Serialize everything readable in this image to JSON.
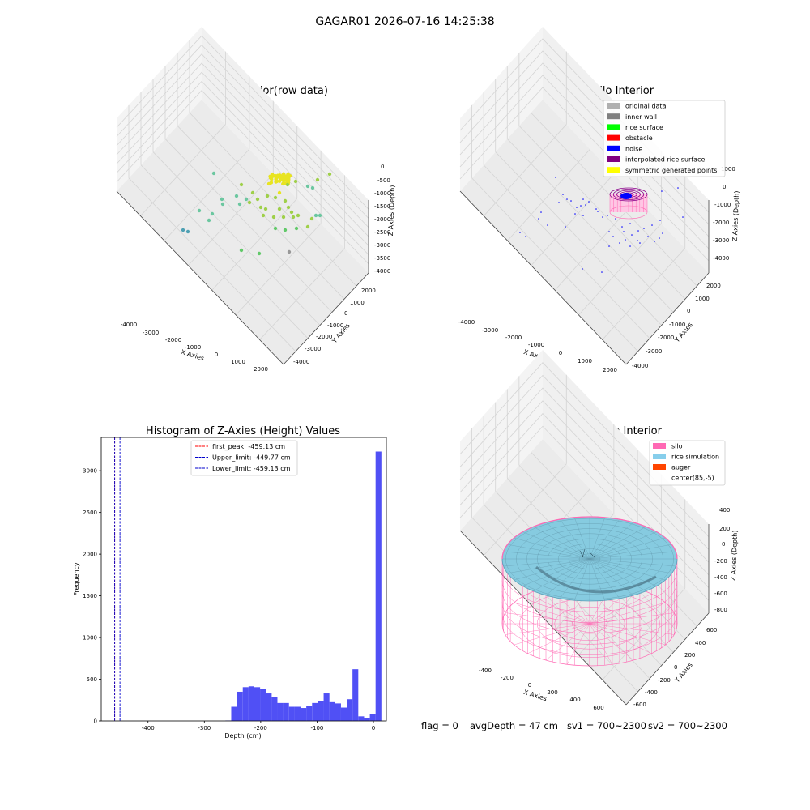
{
  "suptitle": "GAGAR01 2026-07-16 14:25:38",
  "panels": {
    "raw": {
      "title": "3D Plot of Silo Interior(row data)",
      "xlabel": "X Axies",
      "ylabel": "Y Axies",
      "zlabel": "Z Axies (Depth)",
      "xticks": [
        "-4000",
        "-3000",
        "-2000",
        "-1000",
        "0",
        "1000",
        "2000"
      ],
      "yticks": [
        "2000",
        "1000",
        "0",
        "-1000",
        "-2000",
        "-3000",
        "-4000"
      ],
      "zticks": [
        "0",
        "-500",
        "-1000",
        "-1500",
        "-2000",
        "-2500",
        "-3000",
        "-3500",
        "-4000"
      ]
    },
    "classify": {
      "title": "3D classify of Silo Interior",
      "xlabel": "X Axies",
      "ylabel": "Y Axies",
      "zlabel": "Z Axies (Depth)",
      "xticks": [
        "-4000",
        "-3000",
        "-2000",
        "-1000",
        "0",
        "1000",
        "2000"
      ],
      "yticks": [
        "2000",
        "1000",
        "0",
        "-1000",
        "-2000",
        "-3000",
        "-4000"
      ],
      "zticks": [
        "1000",
        "0",
        "-1000",
        "-2000",
        "-3000",
        "-4000"
      ],
      "legend": [
        {
          "label": "original data",
          "color": "#b0b0b0"
        },
        {
          "label": "inner wall",
          "color": "#808080"
        },
        {
          "label": "rice surface",
          "color": "#00ff00"
        },
        {
          "label": "obstacle",
          "color": "#ff0000"
        },
        {
          "label": "noise",
          "color": "#0000ff"
        },
        {
          "label": "interpolated rice surface",
          "color": "#800080"
        },
        {
          "label": "symmetric generated points",
          "color": "#ffff00"
        }
      ]
    },
    "simulation": {
      "title": "3D simulation of Silo Interior",
      "xlabel": "X Axies",
      "ylabel": "Y Axies",
      "zlabel": "Z Axies (Depth)",
      "xticks": [
        "-400",
        "-200",
        "0",
        "200",
        "400",
        "600"
      ],
      "yticks": [
        "600",
        "400",
        "200",
        "0",
        "-200",
        "-400",
        "-600"
      ],
      "zticks": [
        "400",
        "200",
        "0",
        "-200",
        "-400",
        "-600",
        "-800"
      ],
      "legend": [
        {
          "label": "silo",
          "color": "#ff69b4"
        },
        {
          "label": "rice simulation",
          "color": "#87ceeb"
        },
        {
          "label": "auger",
          "color": "#ff4500"
        },
        {
          "label": "center(85,-5)",
          "color": ""
        }
      ]
    }
  },
  "status": {
    "flag": "flag = 0",
    "avg_depth": "avgDepth = 47 cm",
    "sv1": "sv1 = 700~2300",
    "sv2": "sv2 = 700~2300"
  },
  "chart_data": {
    "type": "bar",
    "title": "Histogram of Z-Axies (Height) Values",
    "xlabel": "Depth (cm)",
    "ylabel": "Frequency",
    "xlim": [
      -483,
      23
    ],
    "ylim": [
      0,
      3400
    ],
    "xticks": [
      -400,
      -300,
      -200,
      -100,
      0
    ],
    "yticks": [
      0,
      500,
      1000,
      1500,
      2000,
      2500,
      3000
    ],
    "bar_color": "#5050f5",
    "bin_width": 10.26,
    "bins": [
      {
        "x": -257.5,
        "count": 5
      },
      {
        "x": -247.2,
        "count": 170
      },
      {
        "x": -237.0,
        "count": 350
      },
      {
        "x": -226.7,
        "count": 405
      },
      {
        "x": -216.5,
        "count": 415
      },
      {
        "x": -206.2,
        "count": 405
      },
      {
        "x": -196.0,
        "count": 385
      },
      {
        "x": -185.7,
        "count": 330
      },
      {
        "x": -175.5,
        "count": 285
      },
      {
        "x": -165.2,
        "count": 215
      },
      {
        "x": -155.0,
        "count": 215
      },
      {
        "x": -144.7,
        "count": 170
      },
      {
        "x": -134.5,
        "count": 170
      },
      {
        "x": -124.2,
        "count": 155
      },
      {
        "x": -114.0,
        "count": 175
      },
      {
        "x": -103.7,
        "count": 215
      },
      {
        "x": -93.5,
        "count": 235
      },
      {
        "x": -83.2,
        "count": 330
      },
      {
        "x": -73.0,
        "count": 225
      },
      {
        "x": -62.7,
        "count": 210
      },
      {
        "x": -52.5,
        "count": 160
      },
      {
        "x": -42.2,
        "count": 260
      },
      {
        "x": -32.0,
        "count": 620
      },
      {
        "x": -21.7,
        "count": 55
      },
      {
        "x": -11.5,
        "count": 30
      },
      {
        "x": -1.2,
        "count": 80
      },
      {
        "x": 9.0,
        "count": 3230
      }
    ],
    "vlines": [
      {
        "label": "first_peak: -459.13 cm",
        "x": -459.13,
        "color": "#ff0000"
      },
      {
        "label": "Upper_limit: -449.77 cm",
        "x": -449.77,
        "color": "#0000cc"
      },
      {
        "label": "Lower_limit: -459.13 cm",
        "x": -459.13,
        "color": "#0000cc"
      }
    ],
    "legend_position": "upper center"
  }
}
